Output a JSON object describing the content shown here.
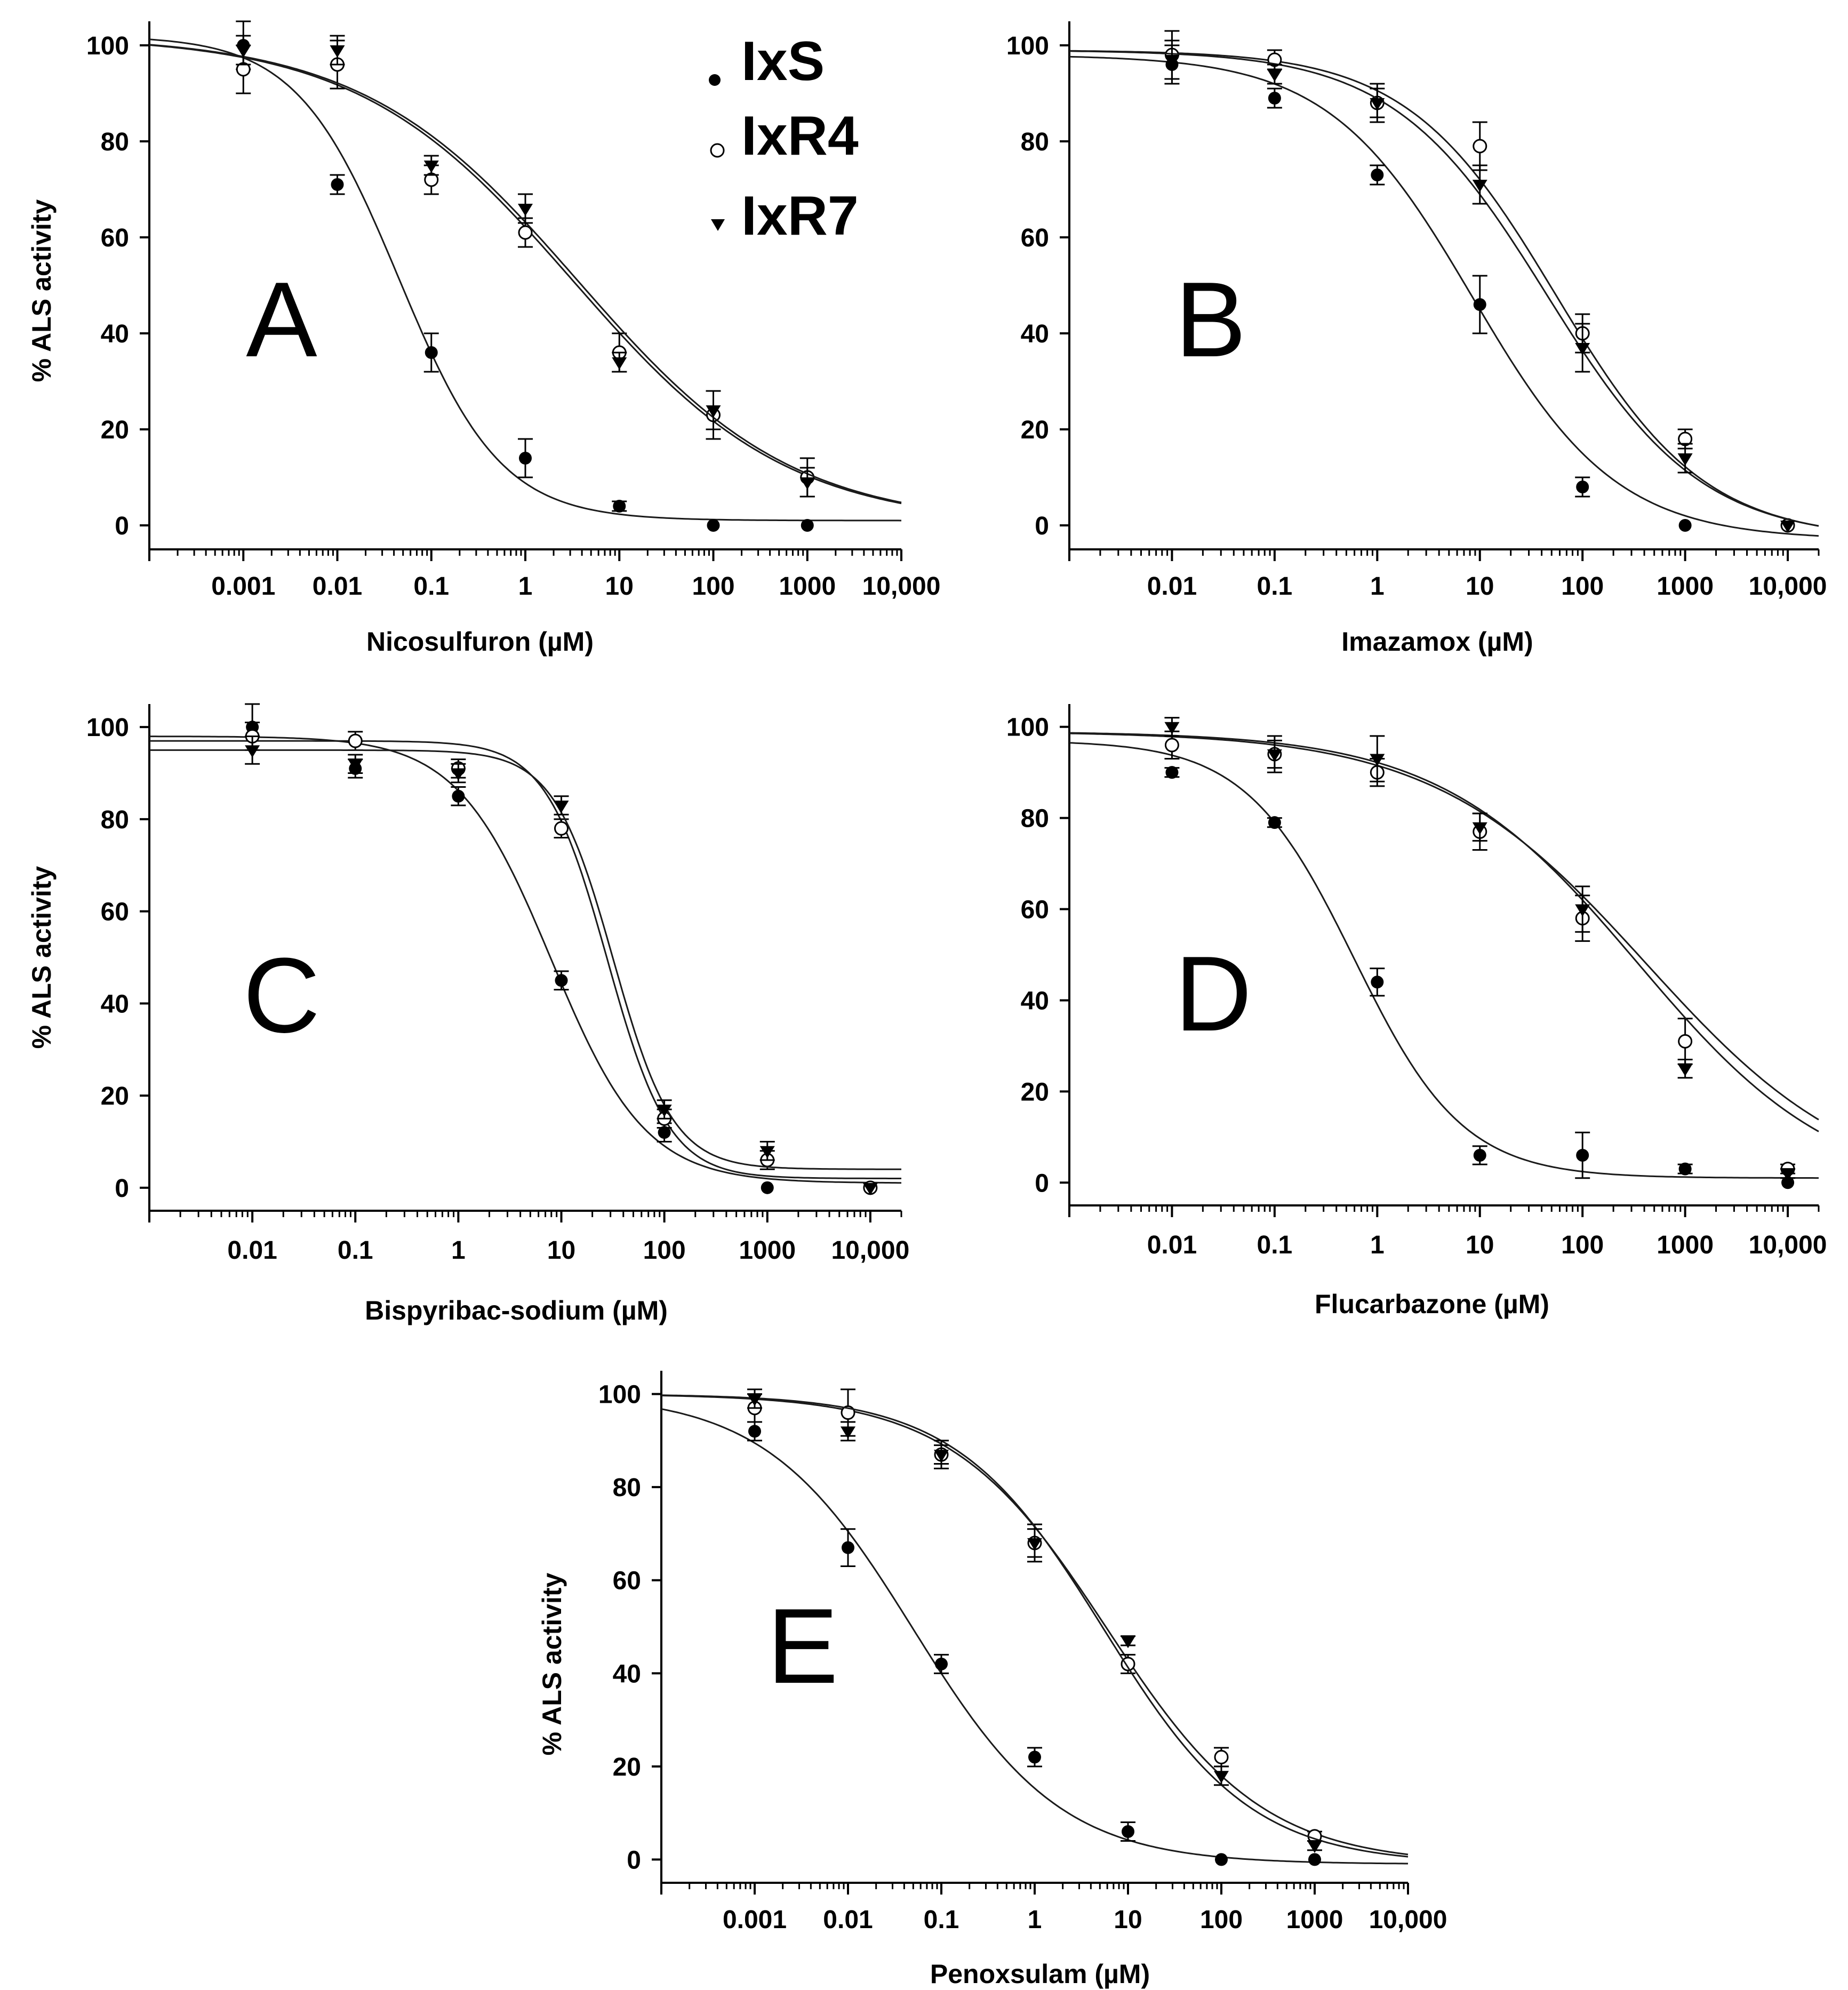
{
  "colors": {
    "line": "#1a1a1a",
    "filled_marker": "#000000",
    "open_marker_fill": "#ffffff"
  },
  "legend": [
    {
      "name": "IxS",
      "marker": "filled-circle"
    },
    {
      "name": "IxR4",
      "marker": "open-circle"
    },
    {
      "name": "IxR7",
      "marker": "filled-down-triangle"
    }
  ],
  "chart_data": [
    {
      "panel": "A",
      "type": "scatter",
      "xlabel": "Nicosulfuron (µM)",
      "ylabel": "% ALS activity",
      "x_scale": "log",
      "xlim": [
        0.0001,
        10000
      ],
      "ylim": [
        -5,
        105
      ],
      "x_ticks": [
        0.001,
        0.01,
        0.1,
        1,
        10,
        100,
        1000,
        10000
      ],
      "x_tick_labels": [
        "0.001",
        "0.01",
        "0.1",
        "1",
        "10",
        "100",
        "1000",
        "10,000"
      ],
      "y_ticks": [
        0,
        20,
        40,
        60,
        80,
        100
      ],
      "y_tick_labels": [
        "0",
        "20",
        "40",
        "60",
        "80",
        "100"
      ],
      "series": [
        {
          "name": "IxS",
          "x": [
            0.001,
            0.01,
            0.1,
            1,
            10,
            100,
            1000
          ],
          "y": [
            100,
            71,
            36,
            14,
            4,
            0,
            0
          ],
          "err": [
            5,
            2,
            4,
            4,
            1,
            0,
            0
          ],
          "fit": {
            "top": 102,
            "bottom": 1,
            "ec50": 0.045,
            "hill": 0.8
          }
        },
        {
          "name": "IxR4",
          "x": [
            0.001,
            0.01,
            0.1,
            1,
            10,
            100,
            1000
          ],
          "y": [
            95,
            96,
            72,
            61,
            36,
            23,
            10
          ],
          "err": [
            5,
            5,
            3,
            3,
            4,
            5,
            4
          ],
          "fit": {
            "top": 102,
            "bottom": 0,
            "ec50": 3.2,
            "hill": 0.38
          }
        },
        {
          "name": "IxR7",
          "x": [
            0.001,
            0.01,
            0.1,
            1,
            10,
            100,
            1000
          ],
          "y": [
            99,
            99,
            75,
            66,
            34,
            24,
            9
          ],
          "err": [
            3,
            3,
            2,
            3,
            2,
            4,
            3
          ],
          "fit": {
            "top": 102,
            "bottom": 0,
            "ec50": 3.6,
            "hill": 0.38
          }
        }
      ]
    },
    {
      "panel": "B",
      "type": "scatter",
      "xlabel": "Imazamox (µM)",
      "ylabel": "",
      "x_scale": "log",
      "xlim": [
        0.001,
        20000
      ],
      "ylim": [
        -5,
        105
      ],
      "x_ticks": [
        0.01,
        0.1,
        1,
        10,
        100,
        1000,
        10000
      ],
      "x_tick_labels": [
        "0.01",
        "0.1",
        "1",
        "10",
        "100",
        "1000",
        "10,000"
      ],
      "y_ticks": [
        0,
        20,
        40,
        60,
        80,
        100
      ],
      "y_tick_labels": [
        "0",
        "20",
        "40",
        "60",
        "80",
        "100"
      ],
      "series": [
        {
          "name": "IxS",
          "x": [
            0.01,
            0.1,
            1,
            10,
            100,
            1000,
            10000
          ],
          "y": [
            96,
            89,
            73,
            46,
            8,
            0,
            0
          ],
          "err": [
            4,
            2,
            2,
            6,
            2,
            0,
            0
          ],
          "fit": {
            "top": 98,
            "bottom": -3,
            "ec50": 8.5,
            "hill": 0.62
          }
        },
        {
          "name": "IxR4",
          "x": [
            0.01,
            0.1,
            1,
            10,
            100,
            1000,
            10000
          ],
          "y": [
            98,
            97,
            88,
            79,
            40,
            18,
            0
          ],
          "err": [
            5,
            2,
            3,
            5,
            4,
            2,
            0
          ],
          "fit": {
            "top": 99,
            "bottom": -3,
            "ec50": 55,
            "hill": 0.6
          }
        },
        {
          "name": "IxR7",
          "x": [
            0.01,
            0.1,
            1,
            10,
            100,
            1000,
            10000
          ],
          "y": [
            97,
            94,
            88,
            71,
            37,
            14,
            0
          ],
          "err": [
            4,
            2,
            4,
            4,
            5,
            3,
            0
          ],
          "fit": {
            "top": 99,
            "bottom": -3,
            "ec50": 45,
            "hill": 0.58
          }
        }
      ]
    },
    {
      "panel": "C",
      "type": "scatter",
      "xlabel": "Bispyribac-sodium (µM)",
      "ylabel": "% ALS activity",
      "x_scale": "log",
      "xlim": [
        0.001,
        20000
      ],
      "ylim": [
        -5,
        105
      ],
      "x_ticks": [
        0.01,
        0.1,
        1,
        10,
        100,
        1000,
        10000
      ],
      "x_tick_labels": [
        "0.01",
        "0.1",
        "1",
        "10",
        "100",
        "1000",
        "10,000"
      ],
      "y_ticks": [
        0,
        20,
        40,
        60,
        80,
        100
      ],
      "y_tick_labels": [
        "0",
        "20",
        "40",
        "60",
        "80",
        "100"
      ],
      "series": [
        {
          "name": "IxS",
          "x": [
            0.01,
            0.1,
            1,
            10,
            100,
            1000,
            10000
          ],
          "y": [
            100,
            91,
            85,
            45,
            12,
            0,
            0
          ],
          "err": [
            5,
            2,
            2,
            2,
            2,
            0,
            0
          ],
          "fit": {
            "top": 98,
            "bottom": 1,
            "ec50": 8,
            "hill": 0.95
          }
        },
        {
          "name": "IxR4",
          "x": [
            0.01,
            0.1,
            1,
            10,
            100,
            1000,
            10000
          ],
          "y": [
            98,
            97,
            91,
            78,
            15,
            6,
            0
          ],
          "err": [
            3,
            2,
            2,
            2,
            2,
            2,
            0
          ],
          "fit": {
            "top": 97,
            "bottom": 2,
            "ec50": 28,
            "hill": 1.45
          }
        },
        {
          "name": "IxR7",
          "x": [
            0.01,
            0.1,
            1,
            10,
            100,
            1000,
            10000
          ],
          "y": [
            95,
            92,
            90,
            83,
            17,
            8,
            0
          ],
          "err": [
            3,
            2,
            2,
            2,
            2,
            2,
            0
          ],
          "fit": {
            "top": 95,
            "bottom": 4,
            "ec50": 32,
            "hill": 1.5
          }
        }
      ]
    },
    {
      "panel": "D",
      "type": "scatter",
      "xlabel": "Flucarbazone (µM)",
      "ylabel": "",
      "x_scale": "log",
      "xlim": [
        0.001,
        20000
      ],
      "ylim": [
        -5,
        105
      ],
      "x_ticks": [
        0.01,
        0.1,
        1,
        10,
        100,
        1000,
        10000
      ],
      "x_tick_labels": [
        "0.01",
        "0.1",
        "1",
        "10",
        "100",
        "1000",
        "10,000"
      ],
      "y_ticks": [
        0,
        20,
        40,
        60,
        80,
        100
      ],
      "y_tick_labels": [
        "0",
        "20",
        "40",
        "60",
        "80",
        "100"
      ],
      "series": [
        {
          "name": "IxS",
          "x": [
            0.01,
            0.1,
            1,
            10,
            100,
            1000,
            10000
          ],
          "y": [
            90,
            79,
            44,
            6,
            6,
            3,
            0
          ],
          "err": [
            1,
            1,
            3,
            2,
            5,
            1,
            0
          ],
          "fit": {
            "top": 97,
            "bottom": 1,
            "ec50": 0.6,
            "hill": 0.82
          }
        },
        {
          "name": "IxR4",
          "x": [
            0.01,
            0.1,
            1,
            10,
            100,
            1000,
            10000
          ],
          "y": [
            96,
            94,
            90,
            77,
            58,
            31,
            3
          ],
          "err": [
            3,
            4,
            3,
            4,
            5,
            5,
            1
          ],
          "fit": {
            "top": 99,
            "bottom": -3,
            "ec50": 420,
            "hill": 0.42
          }
        },
        {
          "name": "IxR7",
          "x": [
            0.01,
            0.1,
            1,
            10,
            100,
            1000,
            10000
          ],
          "y": [
            100,
            94,
            93,
            78,
            60,
            25,
            2
          ],
          "err": [
            2,
            3,
            5,
            3,
            5,
            2,
            1
          ],
          "fit": {
            "top": 99,
            "bottom": -3,
            "ec50": 350,
            "hill": 0.45
          }
        }
      ]
    },
    {
      "panel": "E",
      "type": "scatter",
      "xlabel": "Penoxsulam (µM)",
      "ylabel": "% ALS activity",
      "x_scale": "log",
      "xlim": [
        0.0001,
        10000
      ],
      "ylim": [
        -5,
        105
      ],
      "x_ticks": [
        0.001,
        0.01,
        0.1,
        1,
        10,
        100,
        1000,
        10000
      ],
      "x_tick_labels": [
        "0.001",
        "0.01",
        "0.1",
        "1",
        "10",
        "100",
        "1000",
        "10,000"
      ],
      "y_ticks": [
        0,
        20,
        40,
        60,
        80,
        100
      ],
      "y_tick_labels": [
        "0",
        "20",
        "40",
        "60",
        "80",
        "100"
      ],
      "series": [
        {
          "name": "IxS",
          "x": [
            0.001,
            0.01,
            0.1,
            1,
            10,
            100,
            1000
          ],
          "y": [
            92,
            67,
            42,
            22,
            6,
            0,
            0
          ],
          "err": [
            2,
            4,
            2,
            2,
            2,
            0,
            0
          ],
          "fit": {
            "top": 100,
            "bottom": -1,
            "ec50": 0.05,
            "hill": 0.55
          }
        },
        {
          "name": "IxR4",
          "x": [
            0.001,
            0.01,
            0.1,
            1,
            10,
            100,
            1000
          ],
          "y": [
            97,
            96,
            87,
            68,
            42,
            22,
            5
          ],
          "err": [
            3,
            5,
            2,
            4,
            2,
            2,
            1
          ],
          "fit": {
            "top": 100,
            "bottom": -1,
            "ec50": 6,
            "hill": 0.52
          }
        },
        {
          "name": "IxR7",
          "x": [
            0.001,
            0.01,
            0.1,
            1,
            10,
            100,
            1000
          ],
          "y": [
            99,
            92,
            87,
            68,
            47,
            18,
            3
          ],
          "err": [
            2,
            2,
            3,
            3,
            1,
            2,
            1
          ],
          "fit": {
            "top": 100,
            "bottom": -1,
            "ec50": 5.5,
            "hill": 0.55
          }
        }
      ]
    }
  ]
}
